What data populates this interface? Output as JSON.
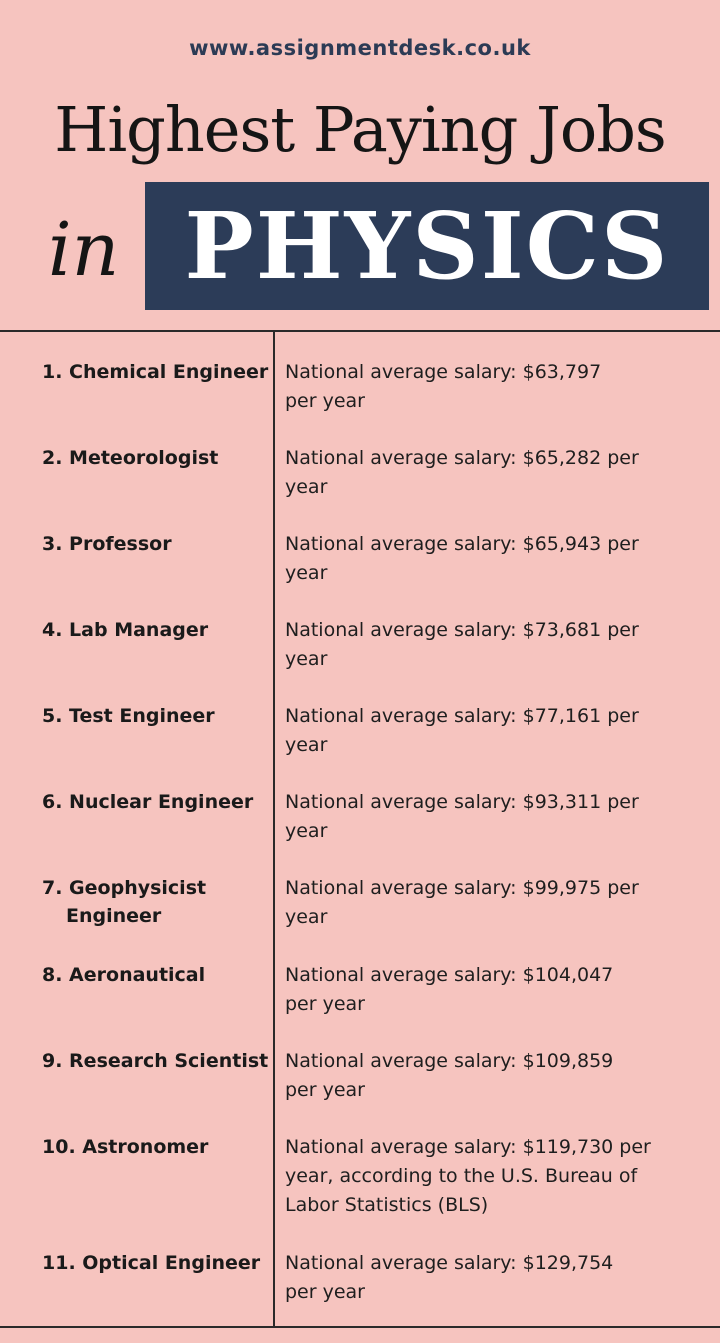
{
  "header": {
    "site_url": "www.assignmentdesk.co.uk",
    "title_line1": "Highest Paying Jobs",
    "title_in": "in",
    "title_physics": "PHYSICS"
  },
  "jobs": [
    {
      "name": "1. Chemical Engineer",
      "name_cont": "",
      "salary_line1": "National average salary: $63,797",
      "salary_line2": "per year",
      "salary_line3": ""
    },
    {
      "name": "2. Meteorologist",
      "name_cont": "",
      "salary_line1": "National average salary: $65,282 per",
      "salary_line2": "year",
      "salary_line3": ""
    },
    {
      "name": "3. Professor",
      "name_cont": "",
      "salary_line1": "National average salary: $65,943 per",
      "salary_line2": "year",
      "salary_line3": ""
    },
    {
      "name": "4. Lab Manager",
      "name_cont": "",
      "salary_line1": "National average salary: $73,681 per",
      "salary_line2": "year",
      "salary_line3": ""
    },
    {
      "name": "5. Test Engineer",
      "name_cont": "",
      "salary_line1": "National average salary: $77,161 per",
      "salary_line2": "year",
      "salary_line3": ""
    },
    {
      "name": "6. Nuclear Engineer",
      "name_cont": "",
      "salary_line1": "National average salary: $93,311 per",
      "salary_line2": "year",
      "salary_line3": ""
    },
    {
      "name": "7. Geophysicist",
      "name_cont": "Engineer",
      "salary_line1": "National average salary: $99,975 per",
      "salary_line2": "year",
      "salary_line3": ""
    },
    {
      "name": "8. Aeronautical",
      "name_cont": "",
      "salary_line1": "National average salary: $104,047",
      "salary_line2": "per year",
      "salary_line3": ""
    },
    {
      "name": "9. Research Scientist",
      "name_cont": "",
      "salary_line1": "National average salary: $109,859",
      "salary_line2": "per year",
      "salary_line3": ""
    },
    {
      "name": "10. Astronomer",
      "name_cont": "",
      "salary_line1": "National average salary: $119,730 per",
      "salary_line2": "year, according to the U.S. Bureau of",
      "salary_line3": "Labor Statistics (BLS)"
    },
    {
      "name": "11. Optical Engineer",
      "name_cont": "",
      "salary_line1": "National average salary: $129,754",
      "salary_line2": "per year",
      "salary_line3": ""
    }
  ]
}
